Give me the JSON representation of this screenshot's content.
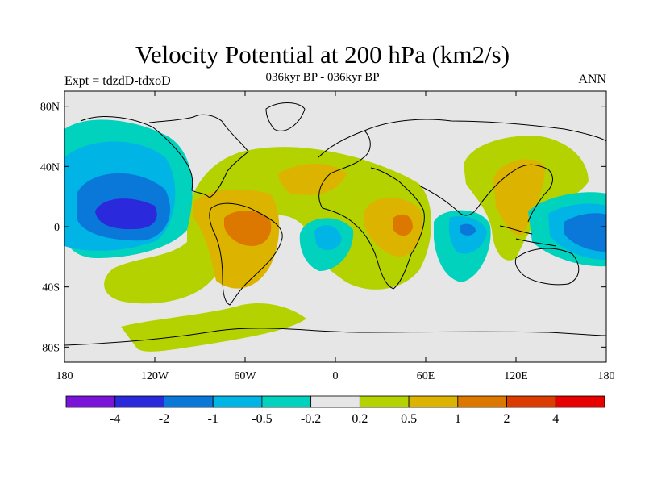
{
  "title": "Velocity Potential at 200 hPa (km2/s)",
  "subtitle": "036kyr BP - 036kyr BP",
  "left_label": "Expt = tdzdD-tdxoD",
  "right_label": "ANN",
  "map": {
    "projection": "cylindrical-equidistant",
    "lon_range": [
      -180,
      180
    ],
    "lat_range": [
      -90,
      90
    ],
    "x_ticks": [
      {
        "value": -180,
        "label": "180"
      },
      {
        "value": -120,
        "label": "120W"
      },
      {
        "value": -60,
        "label": "60W"
      },
      {
        "value": 0,
        "label": "0"
      },
      {
        "value": 60,
        "label": "60E"
      },
      {
        "value": 120,
        "label": "120E"
      },
      {
        "value": 180,
        "label": "180"
      }
    ],
    "y_ticks": [
      {
        "value": 80,
        "label": "80N"
      },
      {
        "value": 40,
        "label": "40N"
      },
      {
        "value": 0,
        "label": "0"
      },
      {
        "value": -40,
        "label": "40S"
      },
      {
        "value": -80,
        "label": "80S"
      }
    ],
    "background_color": "#e6e6e6"
  },
  "colorbar": {
    "colors": [
      "#7a14d8",
      "#2a2adc",
      "#0a78d8",
      "#00b4e6",
      "#00d2be",
      "#e6e6e6",
      "#b4d200",
      "#dcb400",
      "#dc7800",
      "#dc3c00",
      "#e60000"
    ],
    "labels": [
      "-4",
      "-2",
      "-1",
      "-0.5",
      "-0.2",
      "0.2",
      "0.5",
      "1",
      "2",
      "4"
    ]
  }
}
